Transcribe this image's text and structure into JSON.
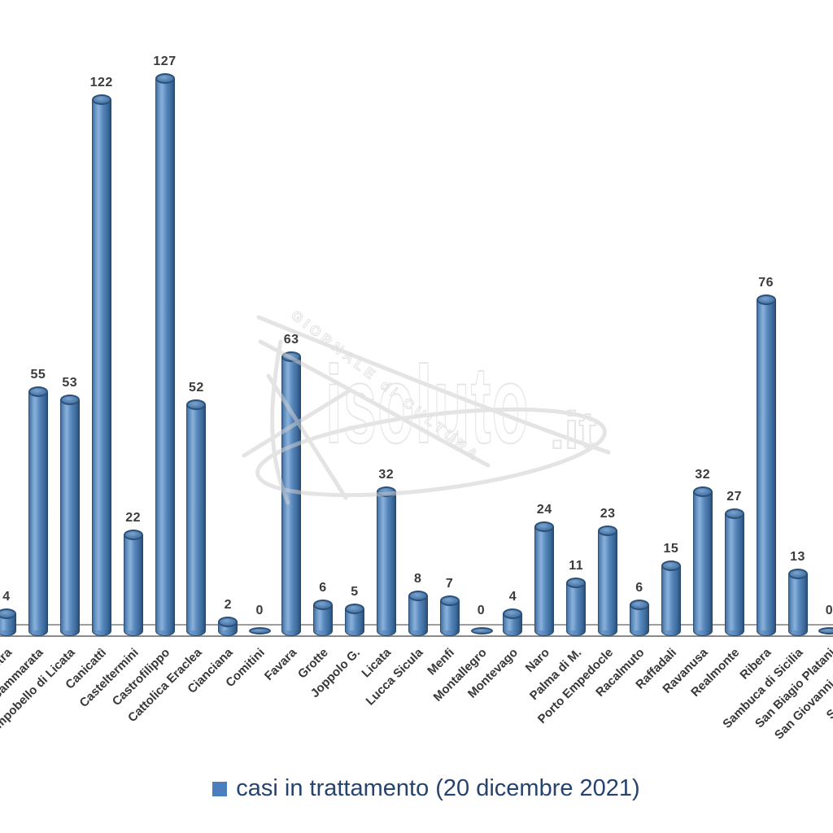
{
  "page": {
    "background": "#ffffff"
  },
  "legend": {
    "label": "casi in trattamento (20 dicembre 2021)",
    "marker_color": "#4a7ebc",
    "text_color": "#26436f"
  },
  "watermark": {
    "tagline": "GIORNALE di CULTURA",
    "brand": "isoluto",
    "brand_suffix": ".it"
  },
  "chart_data": {
    "type": "bar",
    "style": "3d-cylinder",
    "title": "",
    "legend": [
      "casi in trattamento (20 dicembre 2021)"
    ],
    "legend_position": "bottom",
    "grid": false,
    "xlabel": "",
    "ylabel": "",
    "ylim": [
      0,
      130
    ],
    "categories": [
      "Camastra",
      "Cammarata",
      "Campobello di Licata",
      "Canicattì",
      "Casteltermini",
      "Castrofilippo",
      "Cattolica Eraclea",
      "Cianciana",
      "Comitini",
      "Favara",
      "Grotte",
      "Joppolo G.",
      "Licata",
      "Lucca Sicula",
      "Menfi",
      "Montallegro",
      "Montevago",
      "Naro",
      "Palma di M.",
      "Porto Empedocle",
      "Racalmuto",
      "Raffadali",
      "Ravanusa",
      "Realmonte",
      "Ribera",
      "Sambuca di Sicilia",
      "San Biagio Platani",
      "San Giovanni Gemini",
      "Santa Elisabetta"
    ],
    "values": [
      4,
      55,
      53,
      122,
      22,
      127,
      52,
      2,
      0,
      63,
      6,
      5,
      32,
      8,
      7,
      0,
      4,
      24,
      11,
      23,
      6,
      15,
      32,
      27,
      76,
      13,
      0,
      null,
      null
    ],
    "bar_color": "#4f81bd",
    "value_label_color": "#3b3b3b",
    "category_label_color": "#383838",
    "floor_line_color": "#8a8a8a"
  }
}
